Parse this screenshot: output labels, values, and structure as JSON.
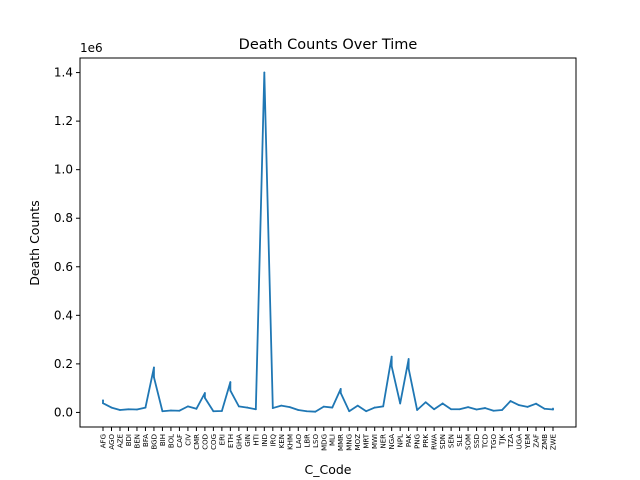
{
  "chart_data": {
    "type": "line",
    "title": "Death Counts Over Time",
    "xlabel": "C_Code",
    "ylabel": "Death Counts",
    "offset_label": "1e6",
    "y_ticks": [
      "0.0",
      "0.2",
      "0.4",
      "0.6",
      "0.8",
      "1.0",
      "1.2",
      "1.4"
    ],
    "y_tick_values": [
      0,
      200000,
      400000,
      600000,
      800000,
      1000000,
      1200000,
      1400000
    ],
    "ylim": [
      -60000,
      1460000
    ],
    "grid": false,
    "line_color": "#1f77b4",
    "categories": [
      "AFG",
      "AGO",
      "AZE",
      "BDI",
      "BEN",
      "BFA",
      "BGD",
      "BIH",
      "BOL",
      "CAF",
      "CIV",
      "CMR",
      "COD",
      "COG",
      "ERI",
      "ETH",
      "GHA",
      "GIN",
      "HTI",
      "IND",
      "IRQ",
      "KEN",
      "KHM",
      "LAO",
      "LBR",
      "LSO",
      "MDG",
      "MLI",
      "MMR",
      "MNG",
      "MOZ",
      "MRT",
      "MWI",
      "NER",
      "NGA",
      "NPL",
      "PAK",
      "PNG",
      "PRK",
      "RWA",
      "SDN",
      "SEN",
      "SLE",
      "SOM",
      "SSD",
      "TCD",
      "TGO",
      "TJK",
      "TZA",
      "UGA",
      "YEM",
      "ZAF",
      "ZMB",
      "ZWE"
    ],
    "points": [
      {
        "x": "AFG",
        "y": 50000
      },
      {
        "x": "AFG",
        "y": 38000
      },
      {
        "x": "AGO",
        "y": 20000
      },
      {
        "x": "AZE",
        "y": 10000
      },
      {
        "x": "BDI",
        "y": 13000
      },
      {
        "x": "BEN",
        "y": 12000
      },
      {
        "x": "BFA",
        "y": 20000
      },
      {
        "x": "BGD",
        "y": 185000
      },
      {
        "x": "BGD",
        "y": 145000
      },
      {
        "x": "BIH",
        "y": 5000
      },
      {
        "x": "BOL",
        "y": 8000
      },
      {
        "x": "CAF",
        "y": 7000
      },
      {
        "x": "CIV",
        "y": 25000
      },
      {
        "x": "CMR",
        "y": 15000
      },
      {
        "x": "COD",
        "y": 80000
      },
      {
        "x": "COD",
        "y": 60000
      },
      {
        "x": "COG",
        "y": 5000
      },
      {
        "x": "ERI",
        "y": 6000
      },
      {
        "x": "ETH",
        "y": 125000
      },
      {
        "x": "ETH",
        "y": 90000
      },
      {
        "x": "GHA",
        "y": 25000
      },
      {
        "x": "GIN",
        "y": 20000
      },
      {
        "x": "HTI",
        "y": 13000
      },
      {
        "x": "IND",
        "y": 1400000
      },
      {
        "x": "IRQ",
        "y": 18000
      },
      {
        "x": "KEN",
        "y": 28000
      },
      {
        "x": "KHM",
        "y": 22000
      },
      {
        "x": "LAO",
        "y": 10000
      },
      {
        "x": "LBR",
        "y": 5000
      },
      {
        "x": "LSO",
        "y": 3000
      },
      {
        "x": "MDG",
        "y": 24000
      },
      {
        "x": "MLI",
        "y": 20000
      },
      {
        "x": "MMR",
        "y": 97000
      },
      {
        "x": "MMR",
        "y": 80000
      },
      {
        "x": "MNG",
        "y": 5000
      },
      {
        "x": "MOZ",
        "y": 28000
      },
      {
        "x": "MRT",
        "y": 5000
      },
      {
        "x": "MWI",
        "y": 20000
      },
      {
        "x": "NER",
        "y": 25000
      },
      {
        "x": "NGA",
        "y": 230000
      },
      {
        "x": "NGA",
        "y": 190000
      },
      {
        "x": "NPL",
        "y": 37000
      },
      {
        "x": "PAK",
        "y": 220000
      },
      {
        "x": "PAK",
        "y": 180000
      },
      {
        "x": "PNG",
        "y": 10000
      },
      {
        "x": "PRK",
        "y": 42000
      },
      {
        "x": "RWA",
        "y": 13000
      },
      {
        "x": "SDN",
        "y": 37000
      },
      {
        "x": "SEN",
        "y": 13000
      },
      {
        "x": "SLE",
        "y": 13000
      },
      {
        "x": "SOM",
        "y": 22000
      },
      {
        "x": "SSD",
        "y": 12000
      },
      {
        "x": "TCD",
        "y": 18000
      },
      {
        "x": "TGO",
        "y": 7000
      },
      {
        "x": "TJK",
        "y": 10000
      },
      {
        "x": "TZA",
        "y": 47000
      },
      {
        "x": "UGA",
        "y": 30000
      },
      {
        "x": "YEM",
        "y": 23000
      },
      {
        "x": "ZAF",
        "y": 36000
      },
      {
        "x": "ZMB",
        "y": 15000
      },
      {
        "x": "ZWE",
        "y": 12000
      },
      {
        "x": "ZWE",
        "y": 16000
      }
    ]
  }
}
